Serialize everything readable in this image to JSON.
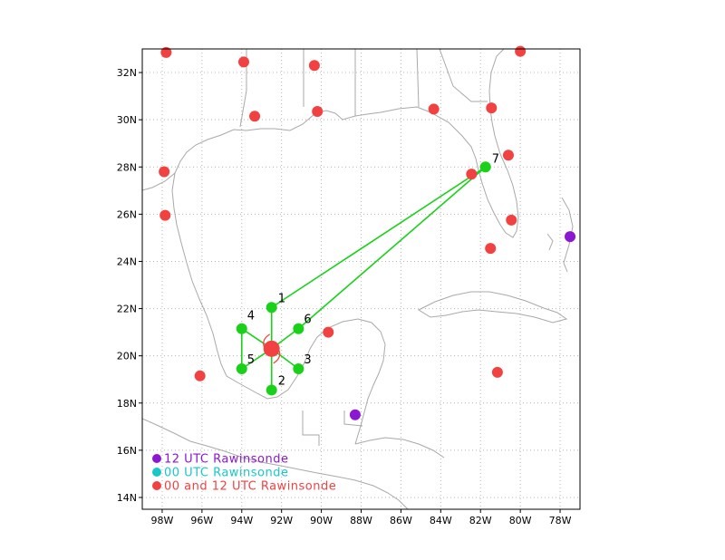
{
  "map": {
    "lon_range": [
      -99,
      -77
    ],
    "lat_range": [
      13.5,
      33
    ],
    "x_ticks": [
      {
        "lon": -98,
        "label": "98W"
      },
      {
        "lon": -96,
        "label": "96W"
      },
      {
        "lon": -94,
        "label": "94W"
      },
      {
        "lon": -92,
        "label": "92W"
      },
      {
        "lon": -90,
        "label": "90W"
      },
      {
        "lon": -88,
        "label": "88W"
      },
      {
        "lon": -86,
        "label": "86W"
      },
      {
        "lon": -84,
        "label": "84W"
      },
      {
        "lon": -82,
        "label": "82W"
      },
      {
        "lon": -80,
        "label": "80W"
      },
      {
        "lon": -78,
        "label": "78W"
      }
    ],
    "y_ticks": [
      {
        "lat": 14,
        "label": "14N"
      },
      {
        "lat": 16,
        "label": "16N"
      },
      {
        "lat": 18,
        "label": "18N"
      },
      {
        "lat": 20,
        "label": "20N"
      },
      {
        "lat": 22,
        "label": "22N"
      },
      {
        "lat": 24,
        "label": "24N"
      },
      {
        "lat": 26,
        "label": "26N"
      },
      {
        "lat": 28,
        "label": "28N"
      },
      {
        "lat": 30,
        "label": "30N"
      },
      {
        "lat": 32,
        "label": "32N"
      }
    ],
    "grid": "dotted"
  },
  "colors": {
    "both_sonde": "#f24141",
    "utc12_sonde": "#8c17d2",
    "utc00_sonde": "#19c7c7",
    "drop_point": "#19d119",
    "track_line": "#19d119",
    "coastline": "#a9a9a9"
  },
  "center": {
    "lon": -92.5,
    "lat": 20.3
  },
  "drop_points": [
    {
      "id": "1",
      "lon": -92.5,
      "lat": 22.05
    },
    {
      "id": "2",
      "lon": -92.5,
      "lat": 18.55
    },
    {
      "id": "3",
      "lon": -91.15,
      "lat": 19.45
    },
    {
      "id": "4",
      "lon": -94.0,
      "lat": 21.15
    },
    {
      "id": "5",
      "lon": -94.0,
      "lat": 19.45
    },
    {
      "id": "6",
      "lon": -91.15,
      "lat": 21.15
    },
    {
      "id": "7",
      "lon": -81.75,
      "lat": 28.0
    }
  ],
  "sondes_both": [
    {
      "lon": -97.8,
      "lat": 32.85
    },
    {
      "lon": -93.9,
      "lat": 32.45
    },
    {
      "lon": -90.35,
      "lat": 32.3
    },
    {
      "lon": -80.0,
      "lat": 32.9
    },
    {
      "lon": -93.35,
      "lat": 30.15
    },
    {
      "lon": -90.2,
      "lat": 30.35
    },
    {
      "lon": -84.35,
      "lat": 30.45
    },
    {
      "lon": -81.45,
      "lat": 30.5
    },
    {
      "lon": -97.9,
      "lat": 27.8
    },
    {
      "lon": -82.45,
      "lat": 27.7
    },
    {
      "lon": -80.6,
      "lat": 28.5
    },
    {
      "lon": -97.85,
      "lat": 25.95
    },
    {
      "lon": -80.45,
      "lat": 25.75
    },
    {
      "lon": -81.5,
      "lat": 24.55
    },
    {
      "lon": -89.65,
      "lat": 21.0
    },
    {
      "lon": -96.1,
      "lat": 19.15
    },
    {
      "lon": -81.15,
      "lat": 19.3
    }
  ],
  "sondes_12utc": [
    {
      "lon": -77.5,
      "lat": 25.05
    },
    {
      "lon": -88.3,
      "lat": 17.5
    }
  ],
  "legend": [
    {
      "label": "12 UTC Rawinsonde",
      "color": "#8c17d2"
    },
    {
      "label": "00 UTC Rawinsonde",
      "color": "#19c7c7"
    },
    {
      "label": "00 and 12 UTC Rawinsonde",
      "color": "#f24141"
    }
  ]
}
